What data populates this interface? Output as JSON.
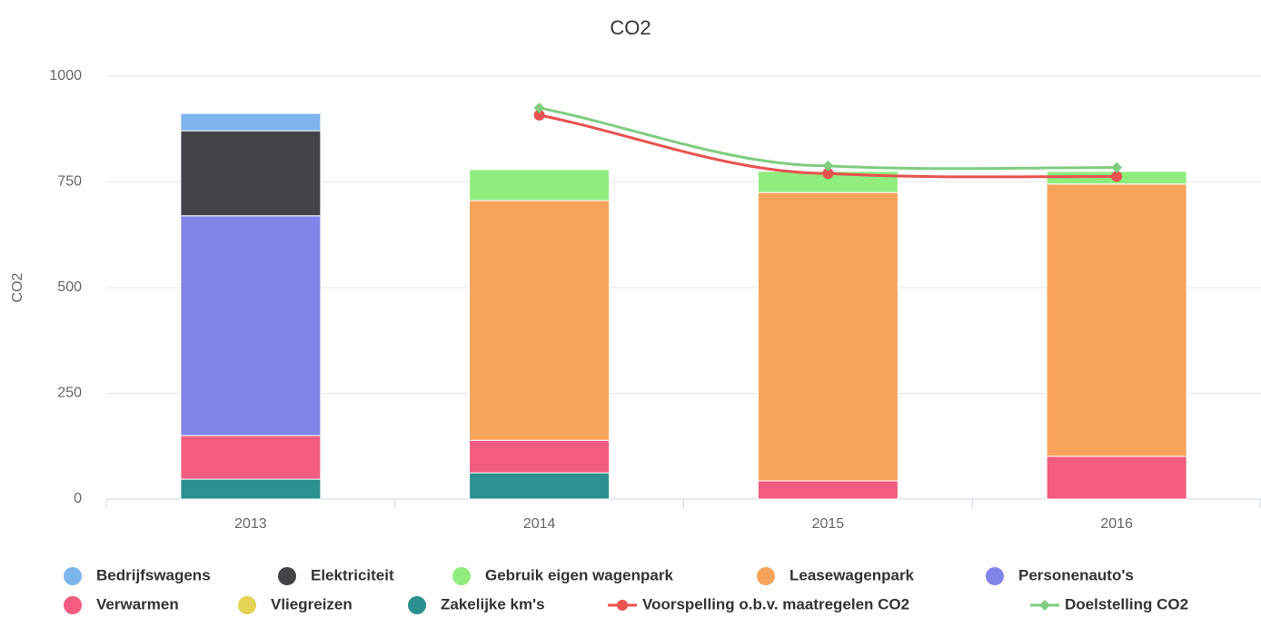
{
  "chart_data": {
    "type": "bar",
    "stacked": true,
    "title": "CO2",
    "y_label": "CO2",
    "categories": [
      "2013",
      "2014",
      "2015",
      "2016"
    ],
    "ylim": [
      0,
      1000
    ],
    "yticks": [
      0,
      250,
      500,
      750,
      1000
    ],
    "grid": true,
    "series": [
      {
        "name": "Bedrijfswagens",
        "color": "#7cb5ec",
        "values": [
          41,
          0,
          0,
          0
        ]
      },
      {
        "name": "Elektriciteit",
        "color": "#434348",
        "values": [
          201,
          0,
          0,
          0
        ]
      },
      {
        "name": "Gebruik eigen wagenpark",
        "color": "#90ed7d",
        "values": [
          0,
          73,
          50,
          30
        ]
      },
      {
        "name": "Leasewagenpark",
        "color": "#f7a35c",
        "values": [
          0,
          567,
          682,
          644
        ]
      },
      {
        "name": "Personenauto's",
        "color": "#8085e9",
        "values": [
          520,
          0,
          0,
          0
        ]
      },
      {
        "name": "Verwarmen",
        "color": "#f15c80",
        "values": [
          103,
          77,
          43,
          101
        ]
      },
      {
        "name": "Vliegreizen",
        "color": "#e4d354",
        "values": [
          0,
          0,
          0,
          0
        ]
      },
      {
        "name": "Zakelijke km's",
        "color": "#2b908f",
        "values": [
          47,
          62,
          0,
          0
        ]
      },
      {
        "name": "Voorspelling o.b.v. maatregelen CO2",
        "type": "line",
        "color": "#e8524f",
        "values": [
          null,
          908,
          770,
          763
        ]
      },
      {
        "name": "Doelstelling CO2",
        "type": "line",
        "color": "#7fcd7f",
        "values": [
          null,
          925,
          788,
          784
        ]
      }
    ]
  }
}
